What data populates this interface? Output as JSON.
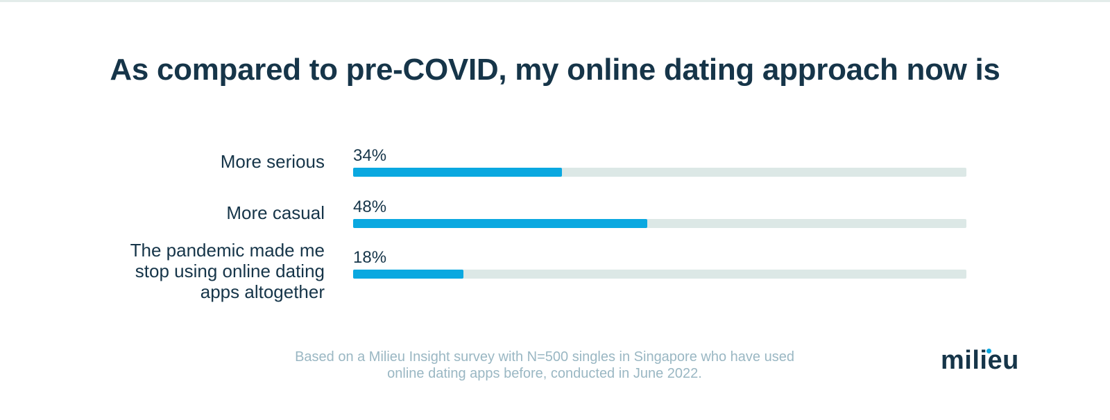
{
  "colors": {
    "title": "#163549",
    "bar_fill": "#0aa8e0",
    "bar_track": "#dce8e6",
    "footnote": "#9ab7c3"
  },
  "chart_data": {
    "type": "bar",
    "orientation": "horizontal",
    "title": "As compared to pre-COVID, my online dating approach now is",
    "categories": [
      "More serious",
      "More casual",
      "The pandemic made me stop using online dating apps altogether"
    ],
    "values": [
      34,
      48,
      18
    ],
    "value_labels": [
      "34%",
      "48%",
      "18%"
    ],
    "xlim": [
      0,
      100
    ],
    "grid": false
  },
  "footnote": {
    "line1": "Based on a Milieu Insight survey with N=500 singles in Singapore who have used",
    "line2": "online dating apps before, conducted in June 2022."
  },
  "logo": {
    "text": "milieu"
  }
}
